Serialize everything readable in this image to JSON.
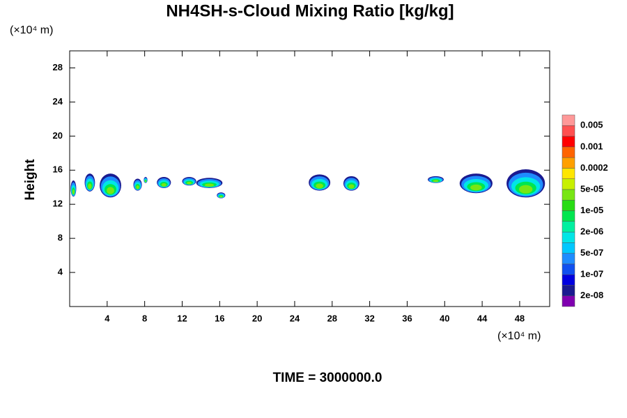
{
  "chart_data": {
    "type": "contour",
    "title": "NH4SH-s-Cloud Mixing Ratio [kg/kg]",
    "ylabel": "Height",
    "xunit": "(×10⁴ m)",
    "yunit": "(×10⁴ m)",
    "footer": "TIME = 3000000.0",
    "xlim": [
      0,
      51.2
    ],
    "ylim": [
      0,
      30
    ],
    "xticks": [
      4,
      8,
      12,
      16,
      20,
      24,
      28,
      32,
      36,
      40,
      44,
      48
    ],
    "yticks": [
      4,
      8,
      12,
      16,
      20,
      24,
      28
    ],
    "colorbar_colors": [
      "#8000b0",
      "#1a1a90",
      "#0000e0",
      "#1050f0",
      "#1e8cff",
      "#00c8ff",
      "#00e6e6",
      "#00f0a0",
      "#00e650",
      "#28dc14",
      "#78e614",
      "#c8f000",
      "#ffe600",
      "#ffa000",
      "#ff6400",
      "#ff0000",
      "#ff5050",
      "#ff9898"
    ],
    "levels": [
      {
        "value": 2e-08,
        "label": "2e-08"
      },
      {
        "value": 1e-07,
        "label": "1e-07"
      },
      {
        "value": 5e-07,
        "label": "5e-07"
      },
      {
        "value": 2e-06,
        "label": "2e-06"
      },
      {
        "value": 1e-05,
        "label": "1e-05"
      },
      {
        "value": 5e-05,
        "label": "5e-05"
      },
      0.0002,
      0.001,
      0.005
    ],
    "clouds": [
      {
        "x": [
          0.1,
          0.7
        ],
        "y": [
          12.9,
          14.8
        ]
      },
      {
        "x": [
          1.6,
          2.7
        ],
        "y": [
          13.5,
          15.6
        ]
      },
      {
        "x": [
          3.2,
          5.5
        ],
        "y": [
          12.8,
          15.6
        ]
      },
      {
        "x": [
          6.8,
          7.7
        ],
        "y": [
          13.6,
          15.0
        ]
      },
      {
        "x": [
          7.9,
          8.3
        ],
        "y": [
          14.5,
          15.2
        ]
      },
      {
        "x": [
          9.3,
          10.8
        ],
        "y": [
          13.9,
          15.2
        ]
      },
      {
        "x": [
          12.0,
          13.5
        ],
        "y": [
          14.2,
          15.2
        ]
      },
      {
        "x": [
          13.5,
          16.3
        ],
        "y": [
          13.9,
          15.1
        ]
      },
      {
        "x": [
          15.7,
          16.6
        ],
        "y": [
          12.7,
          13.4
        ]
      },
      {
        "x": [
          25.5,
          27.8
        ],
        "y": [
          13.6,
          15.5
        ]
      },
      {
        "x": [
          29.2,
          30.9
        ],
        "y": [
          13.6,
          15.3
        ]
      },
      {
        "x": [
          38.2,
          39.9
        ],
        "y": [
          14.5,
          15.3
        ]
      },
      {
        "x": [
          41.6,
          45.1
        ],
        "y": [
          13.3,
          15.6
        ]
      },
      {
        "x": [
          46.6,
          50.7
        ],
        "y": [
          12.8,
          16.1
        ]
      }
    ]
  }
}
